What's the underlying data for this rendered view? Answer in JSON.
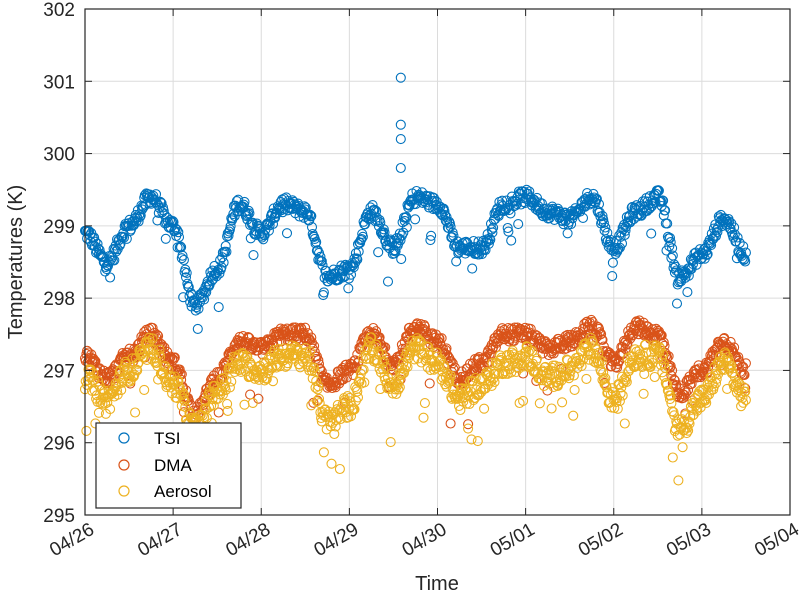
{
  "chart_data": {
    "type": "scatter",
    "xlabel": "Time",
    "ylabel": "Temperatures (K)",
    "x_ticks": [
      "04/26",
      "04/27",
      "04/28",
      "04/29",
      "04/30",
      "05/01",
      "05/02",
      "05/03",
      "05/04"
    ],
    "y_ticks": [
      "295",
      "296",
      "297",
      "298",
      "299",
      "300",
      "301",
      "302"
    ],
    "xlim": [
      "2015-04-26",
      "2015-05-04"
    ],
    "ylim": [
      295,
      302
    ],
    "grid": true,
    "marker": "open-circle",
    "legend": {
      "placement": "bottom-left"
    },
    "series": [
      {
        "name": "TSI",
        "color": "#0072BD",
        "x": [
          "04/26 00:00",
          "04/26 06:00",
          "04/26 12:00",
          "04/26 18:00",
          "04/27 00:00",
          "04/27 06:00",
          "04/27 12:00",
          "04/27 18:00",
          "04/28 00:00",
          "04/28 06:00",
          "04/28 12:00",
          "04/28 18:00",
          "04/29 00:00",
          "04/29 06:00",
          "04/29 12:00",
          "04/29 18:00",
          "04/30 00:00",
          "04/30 06:00",
          "04/30 12:00",
          "04/30 18:00",
          "05/01 00:00",
          "05/01 06:00",
          "05/01 12:00",
          "05/01 18:00",
          "05/02 00:00",
          "05/02 06:00",
          "05/02 12:00",
          "05/02 18:00",
          "05/03 00:00",
          "05/03 06:00",
          "05/03 12:00"
        ],
        "y": [
          298.9,
          298.5,
          299.0,
          299.4,
          299.0,
          297.9,
          298.4,
          299.3,
          298.9,
          299.3,
          299.2,
          298.3,
          298.4,
          299.2,
          298.7,
          299.4,
          299.3,
          298.7,
          298.7,
          299.3,
          299.4,
          299.2,
          299.1,
          299.4,
          298.7,
          299.2,
          299.4,
          298.3,
          298.6,
          299.1,
          298.6
        ],
        "outliers": {
          "x": [
            "04/29 14:00",
            "04/29 14:00",
            "04/29 14:00",
            "04/29 14:00"
          ],
          "y": [
            301.05,
            300.4,
            300.2,
            299.8
          ]
        }
      },
      {
        "name": "DMA",
        "color": "#D95319",
        "x": [
          "04/26 00:00",
          "04/26 06:00",
          "04/26 12:00",
          "04/26 18:00",
          "04/27 00:00",
          "04/27 06:00",
          "04/27 12:00",
          "04/27 18:00",
          "04/28 00:00",
          "04/28 06:00",
          "04/28 12:00",
          "04/28 18:00",
          "04/29 00:00",
          "04/29 06:00",
          "04/29 12:00",
          "04/29 18:00",
          "04/30 00:00",
          "04/30 06:00",
          "04/30 12:00",
          "04/30 18:00",
          "05/01 00:00",
          "05/01 06:00",
          "05/01 12:00",
          "05/01 18:00",
          "05/02 00:00",
          "05/02 06:00",
          "05/02 12:00",
          "05/02 18:00",
          "05/03 00:00",
          "05/03 06:00",
          "05/03 12:00"
        ],
        "y": [
          297.2,
          296.9,
          297.2,
          297.5,
          297.1,
          296.4,
          296.9,
          297.4,
          297.3,
          297.5,
          297.5,
          296.8,
          297.0,
          297.5,
          297.1,
          297.6,
          297.4,
          296.9,
          297.1,
          297.5,
          297.5,
          297.3,
          297.4,
          297.6,
          297.1,
          297.6,
          297.5,
          296.7,
          297.0,
          297.4,
          297.0
        ]
      },
      {
        "name": "Aerosol",
        "color": "#EDB120",
        "x": [
          "04/26 00:00",
          "04/26 06:00",
          "04/26 12:00",
          "04/26 18:00",
          "04/27 00:00",
          "04/27 06:00",
          "04/27 12:00",
          "04/27 18:00",
          "04/28 00:00",
          "04/28 06:00",
          "04/28 12:00",
          "04/28 18:00",
          "04/29 00:00",
          "04/29 06:00",
          "04/29 12:00",
          "04/29 18:00",
          "04/30 00:00",
          "04/30 06:00",
          "04/30 12:00",
          "04/30 18:00",
          "05/01 00:00",
          "05/01 06:00",
          "05/01 12:00",
          "05/01 18:00",
          "05/02 00:00",
          "05/02 06:00",
          "05/02 12:00",
          "05/02 18:00",
          "05/03 00:00",
          "05/03 06:00",
          "05/03 12:00"
        ],
        "y": [
          296.9,
          296.6,
          297.0,
          297.3,
          296.8,
          296.2,
          296.7,
          297.1,
          297.0,
          297.2,
          297.2,
          296.3,
          296.5,
          297.3,
          296.8,
          297.3,
          297.1,
          296.6,
          296.8,
          297.1,
          297.2,
          296.9,
          297.0,
          297.3,
          296.6,
          297.2,
          297.2,
          296.2,
          296.6,
          297.1,
          296.6
        ]
      }
    ]
  }
}
